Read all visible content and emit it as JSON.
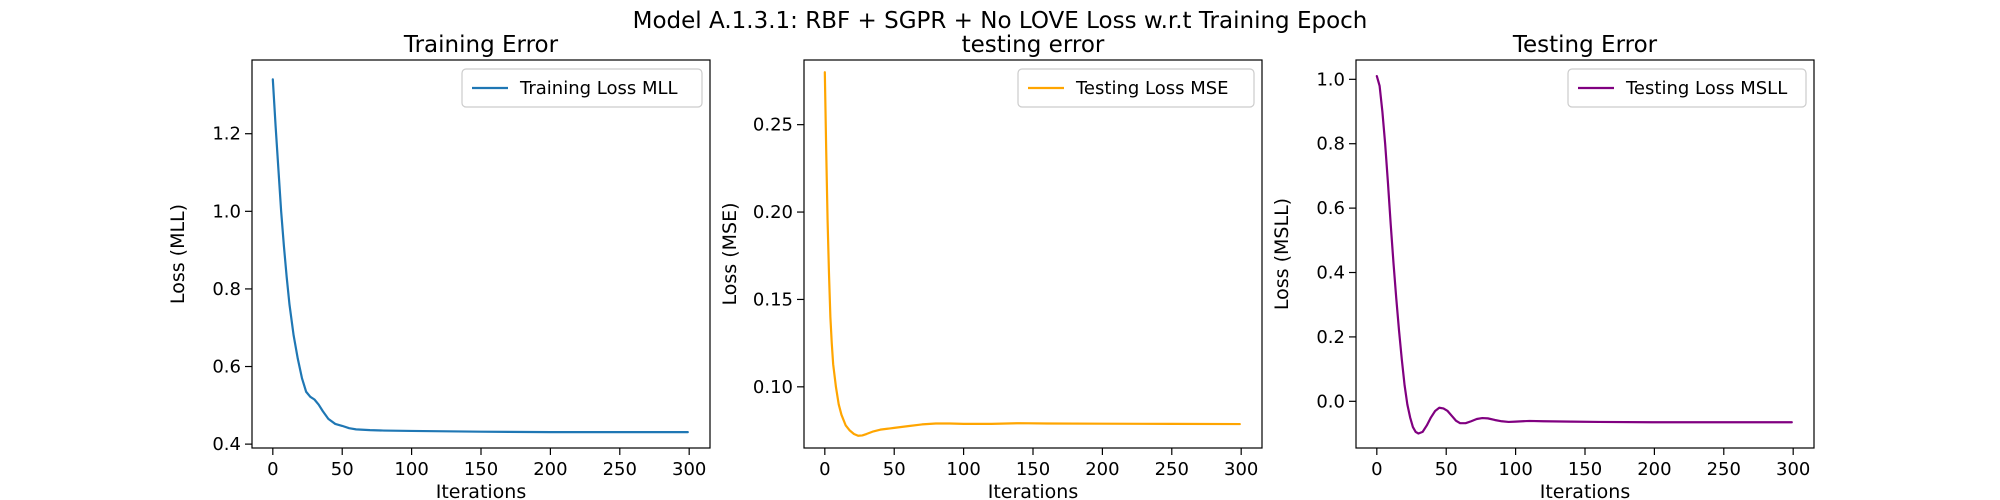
{
  "figure": {
    "title": "Model A.1.3.1: RBF + SGPR + No LOVE Loss w.r.t Training Epoch"
  },
  "chart_data": [
    {
      "type": "line",
      "title": "Training Error",
      "xlabel": "Iterations",
      "ylabel": "Loss (MLL)",
      "xlim": [
        -15,
        315
      ],
      "ylim": [
        0.39,
        1.39
      ],
      "xticks": [
        0,
        50,
        100,
        150,
        200,
        250,
        300
      ],
      "yticks": [
        0.4,
        0.6,
        0.8,
        1.0,
        1.2
      ],
      "xtick_labels": [
        "0",
        "50",
        "100",
        "150",
        "200",
        "250",
        "300"
      ],
      "ytick_labels": [
        "0.4",
        "0.6",
        "0.8",
        "1.0",
        "1.2"
      ],
      "legend": "top-right",
      "grid": false,
      "series": [
        {
          "name": "Training Loss MLL",
          "color": "#1f77b4",
          "x": [
            0,
            2,
            4,
            6,
            8,
            10,
            12,
            15,
            18,
            21,
            24,
            27,
            30,
            33,
            36,
            40,
            45,
            50,
            55,
            60,
            70,
            80,
            100,
            150,
            200,
            250,
            299
          ],
          "y": [
            1.34,
            1.22,
            1.11,
            1.0,
            0.91,
            0.83,
            0.76,
            0.68,
            0.62,
            0.57,
            0.535,
            0.522,
            0.515,
            0.502,
            0.485,
            0.465,
            0.452,
            0.447,
            0.441,
            0.438,
            0.436,
            0.435,
            0.434,
            0.432,
            0.431,
            0.431,
            0.431
          ]
        }
      ]
    },
    {
      "type": "line",
      "title": "testing error",
      "xlabel": "Iterations",
      "ylabel": "Loss (MSE)",
      "xlim": [
        -15,
        315
      ],
      "ylim": [
        0.065,
        0.287
      ],
      "xticks": [
        0,
        50,
        100,
        150,
        200,
        250,
        300
      ],
      "yticks": [
        0.1,
        0.15,
        0.2,
        0.25
      ],
      "xtick_labels": [
        "0",
        "50",
        "100",
        "150",
        "200",
        "250",
        "300"
      ],
      "ytick_labels": [
        "0.10",
        "0.15",
        "0.20",
        "0.25"
      ],
      "legend": "top-right",
      "grid": false,
      "series": [
        {
          "name": "Testing Loss MSE",
          "color": "#ffa500",
          "x": [
            0,
            1,
            2,
            3,
            4,
            5,
            6,
            8,
            10,
            12,
            15,
            18,
            21,
            24,
            27,
            30,
            35,
            40,
            45,
            50,
            60,
            70,
            80,
            90,
            100,
            120,
            140,
            160,
            200,
            250,
            299
          ],
          "y": [
            0.28,
            0.235,
            0.195,
            0.165,
            0.14,
            0.125,
            0.113,
            0.1,
            0.09,
            0.084,
            0.078,
            0.075,
            0.073,
            0.072,
            0.0722,
            0.073,
            0.0745,
            0.0755,
            0.076,
            0.0765,
            0.0775,
            0.0785,
            0.079,
            0.079,
            0.0788,
            0.0788,
            0.0792,
            0.079,
            0.0789,
            0.0788,
            0.0787
          ]
        }
      ]
    },
    {
      "type": "line",
      "title": "Testing Error",
      "xlabel": "Iterations",
      "ylabel": "Loss (MSLL)",
      "xlim": [
        -15,
        315
      ],
      "ylim": [
        -0.145,
        1.06
      ],
      "xticks": [
        0,
        50,
        100,
        150,
        200,
        250,
        300
      ],
      "yticks": [
        0.0,
        0.2,
        0.4,
        0.6,
        0.8,
        1.0
      ],
      "xtick_labels": [
        "0",
        "50",
        "100",
        "150",
        "200",
        "250",
        "300"
      ],
      "ytick_labels": [
        "0.0",
        "0.2",
        "0.4",
        "0.6",
        "0.8",
        "1.0"
      ],
      "legend": "top-right",
      "grid": false,
      "series": [
        {
          "name": "Testing Loss MSLL",
          "color": "#800080",
          "x": [
            0,
            2,
            4,
            6,
            8,
            10,
            12,
            14,
            16,
            18,
            20,
            22,
            24,
            26,
            28,
            30,
            33,
            36,
            39,
            42,
            45,
            48,
            51,
            54,
            57,
            60,
            64,
            68,
            72,
            76,
            80,
            85,
            90,
            95,
            100,
            110,
            120,
            140,
            160,
            200,
            250,
            299
          ],
          "y": [
            1.01,
            0.98,
            0.9,
            0.8,
            0.68,
            0.55,
            0.43,
            0.32,
            0.22,
            0.13,
            0.05,
            -0.01,
            -0.05,
            -0.08,
            -0.095,
            -0.1,
            -0.095,
            -0.075,
            -0.05,
            -0.03,
            -0.02,
            -0.022,
            -0.03,
            -0.045,
            -0.06,
            -0.068,
            -0.068,
            -0.062,
            -0.055,
            -0.052,
            -0.053,
            -0.058,
            -0.062,
            -0.064,
            -0.063,
            -0.061,
            -0.062,
            -0.063,
            -0.064,
            -0.065,
            -0.065,
            -0.065
          ]
        }
      ]
    }
  ]
}
